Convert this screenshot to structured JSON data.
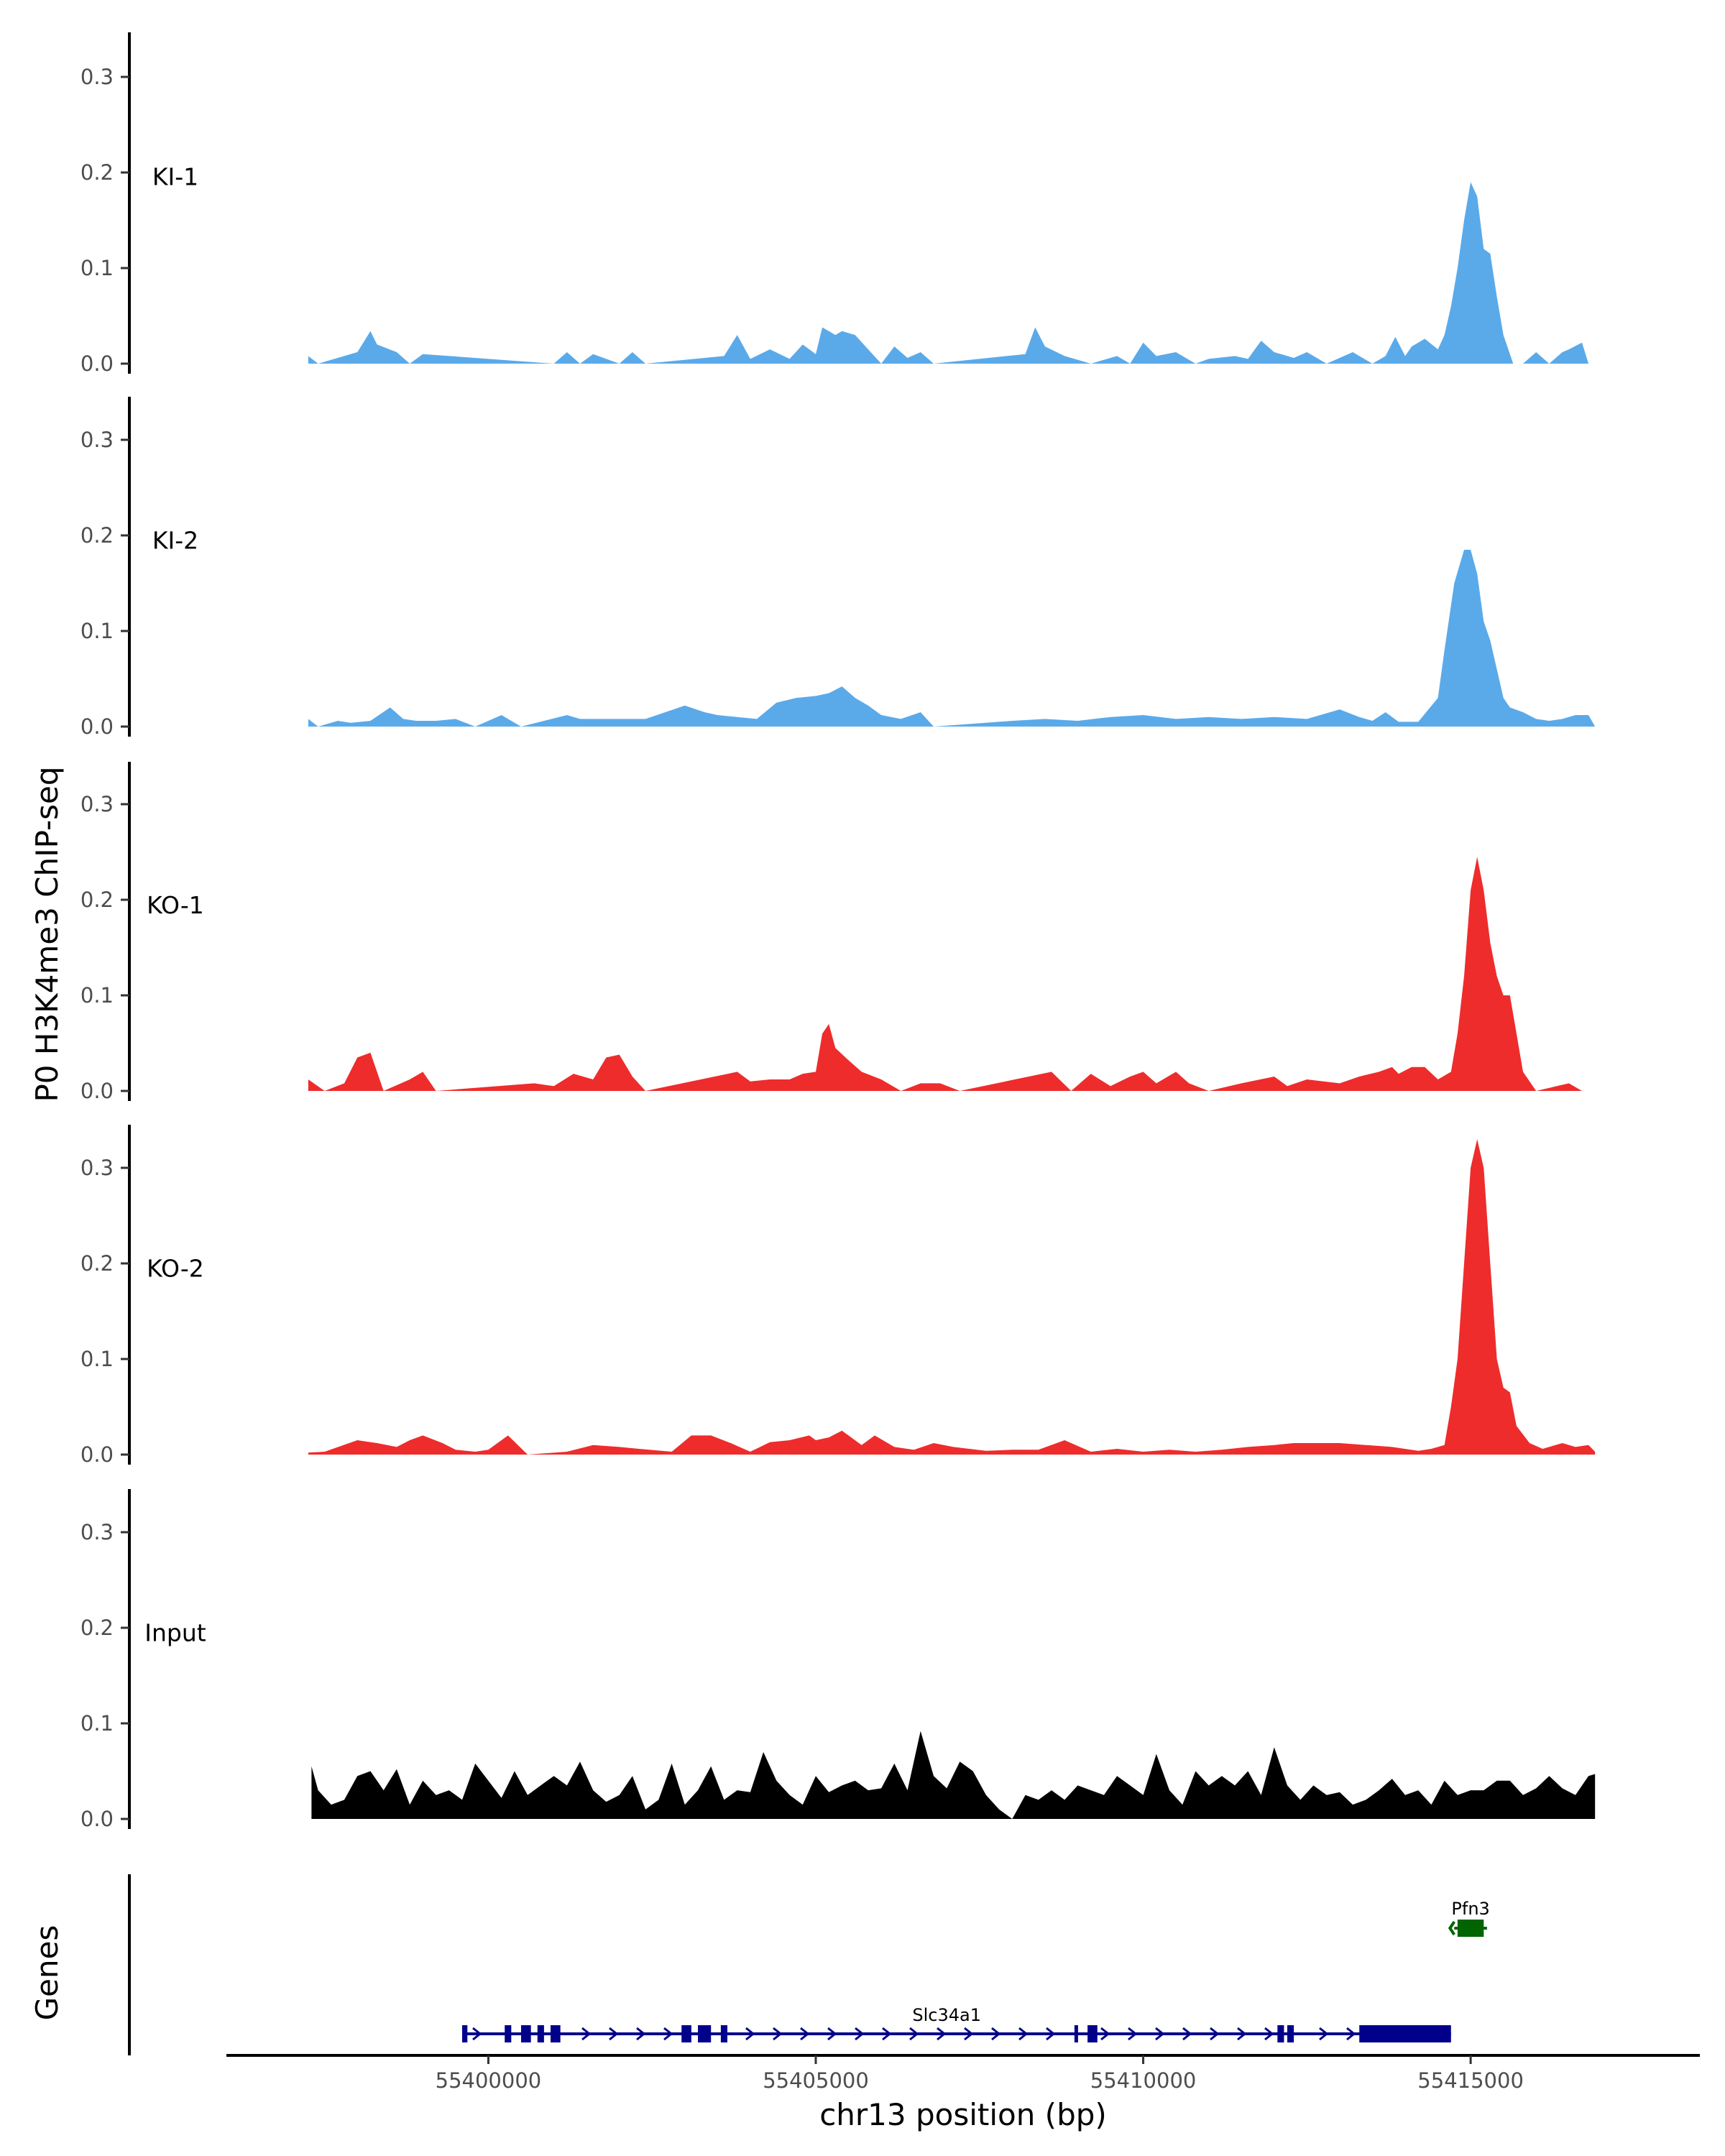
{
  "chart_data": {
    "type": "area",
    "y_axis_title": "P0 H3K4me3 ChIP-seq",
    "genes_axis_title": "Genes",
    "x_axis_title": "chr13 position (bp)",
    "xlim": [
      55396000,
      55418500
    ],
    "x_ticks": [
      55400000,
      55405000,
      55410000,
      55415000
    ],
    "x_tick_labels": [
      "55400000",
      "55405000",
      "55410000",
      "55415000"
    ],
    "ylim": [
      0,
      0.34
    ],
    "y_ticks": [
      0.0,
      0.1,
      0.2,
      0.3
    ],
    "y_tick_labels": [
      "0.0",
      "0.1",
      "0.2",
      "0.3"
    ],
    "tracks": [
      {
        "name": "KI-1",
        "color": "#5aaaea",
        "x": [
          55397250,
          55397400,
          55398000,
          55398200,
          55398300,
          55398600,
          55398800,
          55399000,
          55401000,
          55401200,
          55401400,
          55401600,
          55402000,
          55402200,
          55402400,
          55403600,
          55403800,
          55404000,
          55404300,
          55404600,
          55404800,
          55405000,
          55405100,
          55405300,
          55405400,
          55405600,
          55405800,
          55406000,
          55406200,
          55406400,
          55406600,
          55406800,
          55408200,
          55408350,
          55408500,
          55408800,
          55409200,
          55409600,
          55409800,
          55410000,
          55410200,
          55410500,
          55410800,
          55411000,
          55411400,
          55411600,
          55411800,
          55412000,
          55412300,
          55412500,
          55412800,
          55413200,
          55413500,
          55413700,
          55413850,
          55414000,
          55414100,
          55414300,
          55414500,
          55414600,
          55414700,
          55414800,
          55414900,
          55415000,
          55415100,
          55415200,
          55415300,
          55415400,
          55415500,
          55415650,
          55415800,
          55416000,
          55416200,
          55416400,
          55416500,
          55416700,
          55416800,
          55416900
        ],
        "values": [
          0.008,
          0.0,
          0.012,
          0.034,
          0.02,
          0.012,
          0.0,
          0.01,
          0.0,
          0.012,
          0.0,
          0.01,
          0.0,
          0.012,
          0.0,
          0.008,
          0.03,
          0.005,
          0.015,
          0.005,
          0.02,
          0.01,
          0.038,
          0.03,
          0.034,
          0.03,
          0.015,
          0.0,
          0.018,
          0.006,
          0.012,
          0.0,
          0.01,
          0.038,
          0.018,
          0.008,
          0.0,
          0.008,
          0.0,
          0.022,
          0.008,
          0.012,
          0.0,
          0.005,
          0.008,
          0.005,
          0.024,
          0.012,
          0.006,
          0.012,
          0.0,
          0.012,
          0.0,
          0.008,
          0.028,
          0.008,
          0.018,
          0.026,
          0.015,
          0.03,
          0.06,
          0.1,
          0.15,
          0.19,
          0.175,
          0.12,
          0.115,
          0.07,
          0.03,
          0.0,
          0.0,
          0.012,
          0.0,
          0.012,
          0.015,
          0.022,
          0.0,
          0.0
        ]
      },
      {
        "name": "KI-2",
        "color": "#5aaaea",
        "x": [
          55397250,
          55397400,
          55397700,
          55397900,
          55398200,
          55398500,
          55398700,
          55398900,
          55399200,
          55399500,
          55399800,
          55400200,
          55400500,
          55401200,
          55401400,
          55402100,
          55402400,
          55403000,
          55403300,
          55403500,
          55403800,
          55404100,
          55404400,
          55404700,
          55405000,
          55405200,
          55405400,
          55405600,
          55405800,
          55406000,
          55406300,
          55406600,
          55406800,
          55408000,
          55408500,
          55409000,
          55409500,
          55410000,
          55410500,
          55411000,
          55411500,
          55412000,
          55412500,
          55413000,
          55413300,
          55413500,
          55413700,
          55413900,
          55414200,
          55414500,
          55414600,
          55414750,
          55414900,
          55415000,
          55415100,
          55415200,
          55415300,
          55415400,
          55415500,
          55415600,
          55415800,
          55416000,
          55416200,
          55416400,
          55416600,
          55416800,
          55416900
        ],
        "values": [
          0.008,
          0.0,
          0.006,
          0.004,
          0.006,
          0.02,
          0.008,
          0.006,
          0.006,
          0.008,
          0.0,
          0.012,
          0.0,
          0.012,
          0.008,
          0.008,
          0.008,
          0.022,
          0.015,
          0.012,
          0.01,
          0.008,
          0.025,
          0.03,
          0.032,
          0.035,
          0.042,
          0.03,
          0.022,
          0.012,
          0.008,
          0.015,
          0.0,
          0.006,
          0.008,
          0.006,
          0.01,
          0.012,
          0.008,
          0.01,
          0.008,
          0.01,
          0.008,
          0.018,
          0.01,
          0.006,
          0.015,
          0.005,
          0.005,
          0.03,
          0.08,
          0.15,
          0.185,
          0.185,
          0.16,
          0.11,
          0.09,
          0.06,
          0.03,
          0.02,
          0.015,
          0.008,
          0.006,
          0.008,
          0.012,
          0.012,
          0.0
        ]
      },
      {
        "name": "KO-1",
        "color": "#ee2c2c",
        "x": [
          55397250,
          55397500,
          55397800,
          55398000,
          55398200,
          55398400,
          55398800,
          55399000,
          55399200,
          55400700,
          55401000,
          55401300,
          55401600,
          55401800,
          55402000,
          55402200,
          55402400,
          55403800,
          55404000,
          55404300,
          55404600,
          55404800,
          55405000,
          55405100,
          55405200,
          55405300,
          55405500,
          55405700,
          55406000,
          55406300,
          55406600,
          55406900,
          55407200,
          55408600,
          55408900,
          55409200,
          55409500,
          55409800,
          55410000,
          55410200,
          55410500,
          55410700,
          55411000,
          55411500,
          55412000,
          55412200,
          55412500,
          55413000,
          55413300,
          55413600,
          55413800,
          55413900,
          55414100,
          55414300,
          55414500,
          55414700,
          55414800,
          55414900,
          55415000,
          55415100,
          55415200,
          55415300,
          55415400,
          55415500,
          55415600,
          55415800,
          55416000,
          55416500,
          55416700
        ],
        "values": [
          0.012,
          0.0,
          0.008,
          0.035,
          0.04,
          0.0,
          0.012,
          0.02,
          0.0,
          0.008,
          0.005,
          0.018,
          0.012,
          0.035,
          0.038,
          0.015,
          0.0,
          0.02,
          0.01,
          0.012,
          0.012,
          0.018,
          0.02,
          0.06,
          0.07,
          0.045,
          0.032,
          0.02,
          0.012,
          0.0,
          0.008,
          0.008,
          0.0,
          0.02,
          0.0,
          0.018,
          0.005,
          0.015,
          0.02,
          0.008,
          0.02,
          0.008,
          0.0,
          0.008,
          0.015,
          0.005,
          0.012,
          0.008,
          0.015,
          0.02,
          0.025,
          0.018,
          0.025,
          0.025,
          0.012,
          0.02,
          0.06,
          0.12,
          0.21,
          0.245,
          0.21,
          0.155,
          0.12,
          0.1,
          0.1,
          0.02,
          0.0,
          0.008,
          0.0
        ]
      },
      {
        "name": "KO-2",
        "color": "#ee2c2c",
        "x": [
          55397250,
          55397500,
          55398000,
          55398300,
          55398600,
          55398800,
          55399000,
          55399300,
          55399500,
          55399800,
          55400000,
          55400300,
          55400600,
          55401200,
          55401600,
          55402000,
          55402300,
          55402800,
          55403100,
          55403400,
          55403700,
          55404000,
          55404300,
          55404600,
          55404900,
          55405000,
          55405200,
          55405400,
          55405700,
          55405900,
          55406200,
          55406500,
          55406800,
          55407100,
          55407600,
          55408000,
          55408400,
          55408800,
          55409200,
          55409600,
          55410000,
          55410400,
          55410800,
          55411200,
          55411600,
          55412000,
          55412300,
          55412600,
          55413000,
          55413400,
          55413800,
          55414200,
          55414400,
          55414600,
          55414700,
          55414800,
          55414900,
          55415000,
          55415100,
          55415200,
          55415300,
          55415400,
          55415500,
          55415600,
          55415700,
          55415900,
          55416100,
          55416400,
          55416600,
          55416800,
          55416900
        ],
        "values": [
          0.002,
          0.003,
          0.015,
          0.012,
          0.008,
          0.015,
          0.02,
          0.012,
          0.005,
          0.003,
          0.005,
          0.02,
          0.0,
          0.003,
          0.01,
          0.008,
          0.006,
          0.003,
          0.02,
          0.02,
          0.012,
          0.003,
          0.013,
          0.015,
          0.02,
          0.015,
          0.018,
          0.025,
          0.01,
          0.02,
          0.008,
          0.005,
          0.012,
          0.008,
          0.004,
          0.005,
          0.005,
          0.015,
          0.003,
          0.006,
          0.003,
          0.005,
          0.003,
          0.005,
          0.008,
          0.01,
          0.012,
          0.012,
          0.012,
          0.01,
          0.008,
          0.004,
          0.006,
          0.01,
          0.05,
          0.1,
          0.2,
          0.3,
          0.33,
          0.3,
          0.2,
          0.1,
          0.07,
          0.065,
          0.03,
          0.012,
          0.006,
          0.012,
          0.008,
          0.01,
          0.003
        ]
      },
      {
        "name": "Input",
        "color": "#000000",
        "x": [
          55397300,
          55397400,
          55397600,
          55397800,
          55398000,
          55398200,
          55398400,
          55398600,
          55398800,
          55399000,
          55399200,
          55399400,
          55399600,
          55399800,
          55400000,
          55400200,
          55400400,
          55400600,
          55400800,
          55401000,
          55401200,
          55401400,
          55401600,
          55401800,
          55402000,
          55402200,
          55402400,
          55402600,
          55402800,
          55403000,
          55403200,
          55403400,
          55403600,
          55403800,
          55404000,
          55404200,
          55404400,
          55404600,
          55404800,
          55405000,
          55405200,
          55405400,
          55405600,
          55405800,
          55406000,
          55406200,
          55406400,
          55406600,
          55406800,
          55407000,
          55407200,
          55407400,
          55407600,
          55407800,
          55408000,
          55408200,
          55408400,
          55408600,
          55408800,
          55409000,
          55409200,
          55409400,
          55409600,
          55409800,
          55410000,
          55410200,
          55410400,
          55410600,
          55410800,
          55411000,
          55411200,
          55411400,
          55411600,
          55411800,
          55412000,
          55412200,
          55412400,
          55412600,
          55412800,
          55413000,
          55413200,
          55413400,
          55413600,
          55413800,
          55414000,
          55414200,
          55414400,
          55414600,
          55414800,
          55415000,
          55415200,
          55415400,
          55415600,
          55415800,
          55416000,
          55416200,
          55416400,
          55416600,
          55416800,
          55416900
        ],
        "values": [
          0.055,
          0.03,
          0.015,
          0.02,
          0.045,
          0.05,
          0.03,
          0.052,
          0.015,
          0.04,
          0.025,
          0.03,
          0.02,
          0.058,
          0.04,
          0.022,
          0.05,
          0.025,
          0.035,
          0.045,
          0.035,
          0.06,
          0.03,
          0.018,
          0.025,
          0.045,
          0.01,
          0.02,
          0.058,
          0.015,
          0.03,
          0.055,
          0.02,
          0.03,
          0.028,
          0.07,
          0.04,
          0.025,
          0.015,
          0.045,
          0.028,
          0.035,
          0.04,
          0.03,
          0.032,
          0.058,
          0.03,
          0.092,
          0.045,
          0.032,
          0.06,
          0.05,
          0.025,
          0.01,
          0.0,
          0.025,
          0.02,
          0.03,
          0.02,
          0.035,
          0.03,
          0.025,
          0.045,
          0.035,
          0.025,
          0.068,
          0.03,
          0.015,
          0.05,
          0.035,
          0.045,
          0.035,
          0.05,
          0.025,
          0.075,
          0.035,
          0.02,
          0.035,
          0.025,
          0.028,
          0.015,
          0.02,
          0.03,
          0.042,
          0.025,
          0.03,
          0.015,
          0.04,
          0.025,
          0.03,
          0.03,
          0.04,
          0.04,
          0.025,
          0.032,
          0.045,
          0.032,
          0.025,
          0.045,
          0.047
        ]
      }
    ],
    "genes": [
      {
        "name": "Slc34a1",
        "color": "#00008b",
        "strand": "+",
        "row": "lower",
        "start": 55399600,
        "end": 55414700,
        "exons": [
          [
            55399600,
            55399680
          ],
          [
            55400250,
            55400350
          ],
          [
            55400500,
            55400650
          ],
          [
            55400750,
            55400850
          ],
          [
            55400950,
            55401100
          ],
          [
            55402950,
            55403100
          ],
          [
            55403200,
            55403400
          ],
          [
            55403550,
            55403650
          ],
          [
            55408950,
            55409000
          ],
          [
            55409150,
            55409300
          ],
          [
            55412050,
            55412150
          ],
          [
            55412200,
            55412300
          ],
          [
            55413300,
            55414700
          ]
        ]
      },
      {
        "name": "Pfn3",
        "color": "#006400",
        "strand": "-",
        "row": "upper",
        "start": 55414750,
        "end": 55415250,
        "exons": [
          [
            55414800,
            55415200
          ]
        ]
      }
    ]
  }
}
